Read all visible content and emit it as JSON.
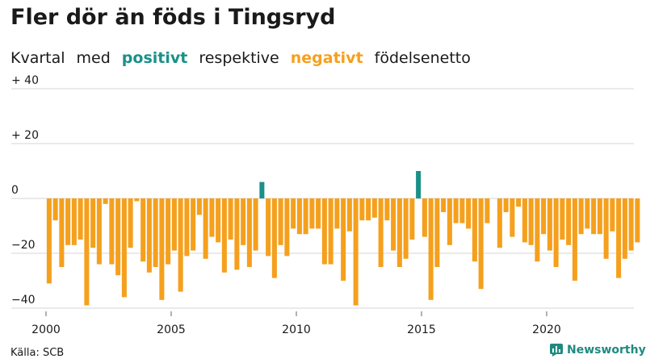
{
  "title": "Fler dör än föds i Tingsryd",
  "subtitle": {
    "w1": "Kvartal",
    "w2": "med",
    "positive": "positivt",
    "w3": "respektive",
    "negative": "negativt",
    "w4": "födelsenetto"
  },
  "source": "Källa: SCB",
  "brand": "Newsworthy",
  "colors": {
    "positive": "#1a9188",
    "negative": "#f5a01d",
    "brand": "#1f8a80"
  },
  "chart_data": {
    "type": "bar",
    "title": "Fler dör än föds i Tingsryd",
    "ylim": [
      -40,
      40
    ],
    "yticks": [
      40,
      20,
      0,
      -20,
      -40
    ],
    "ytick_labels": [
      "+ 40",
      "+ 20",
      "0",
      "−20",
      "−40"
    ],
    "xticks": [
      2000,
      2005,
      2010,
      2015,
      2020
    ],
    "x_start": 2000,
    "periods_per_year": 4,
    "grid": true,
    "values": [
      -31,
      -8,
      -25,
      -17,
      -17,
      -15,
      -39,
      -18,
      -24,
      -2,
      -24,
      -28,
      -36,
      -18,
      -1,
      -23,
      -27,
      -25,
      -37,
      -24,
      -19,
      -34,
      -21,
      -19,
      -6,
      -22,
      -14,
      -16,
      -27,
      -15,
      -26,
      -17,
      -25,
      -19,
      6,
      -21,
      -29,
      -17,
      -21,
      -11,
      -13,
      -13,
      -11,
      -11,
      -24,
      -24,
      -11,
      -30,
      -12,
      -39,
      -8,
      -8,
      -7,
      -25,
      -8,
      -19,
      -25,
      -22,
      -15,
      10,
      -14,
      -37,
      -25,
      -5,
      -17,
      -9,
      -9,
      -11,
      -23,
      -33,
      -9,
      0,
      -18,
      -5,
      -14,
      -3,
      -16,
      -17,
      -23,
      -13,
      -19,
      -25,
      -15,
      -17,
      -30,
      -13,
      -11,
      -13,
      -13,
      -22,
      -12,
      -29,
      -22,
      -19,
      -16
    ]
  }
}
